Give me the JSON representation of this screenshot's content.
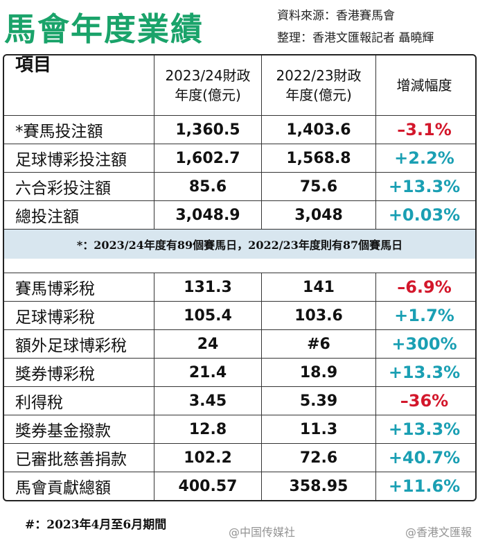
{
  "header": {
    "title": "馬會年度業績",
    "source": "資料來源：香港賽馬會",
    "compiler": "整理：香港文匯報記者 聶曉輝"
  },
  "table": {
    "columns": [
      [
        "項目"
      ],
      [
        "2023/24財政",
        "年度(億元)"
      ],
      [
        "2022/23財政",
        "年度(億元)"
      ],
      [
        "增減幅度"
      ]
    ],
    "positive_color": "#1a9fb3",
    "negative_color": "#d3172b",
    "groups": [
      {
        "rows": [
          {
            "item": "*賽馬投注額",
            "fy2023": "1,360.5",
            "fy2022": "1,403.6",
            "change": "–3.1%",
            "sign": "negative"
          },
          {
            "item": "足球博彩投注額",
            "fy2023": "1,602.7",
            "fy2022": "1,568.8",
            "change": "+2.2%",
            "sign": "positive"
          },
          {
            "item": "六合彩投注額",
            "fy2023": "85.6",
            "fy2022": "75.6",
            "change": "+13.3%",
            "sign": "positive"
          },
          {
            "item": "總投注額",
            "fy2023": "3,048.9",
            "fy2022": "3,048",
            "change": "+0.03%",
            "sign": "positive"
          }
        ],
        "note": "*：2023/24年度有89個賽馬日，2022/23年度則有87個賽馬日"
      },
      {
        "rows": [
          {
            "item": "賽馬博彩稅",
            "fy2023": "131.3",
            "fy2022": "141",
            "change": "–6.9%",
            "sign": "negative"
          },
          {
            "item": "足球博彩稅",
            "fy2023": "105.4",
            "fy2022": "103.6",
            "change": "+1.7%",
            "sign": "positive"
          },
          {
            "item": "額外足球博彩稅",
            "fy2023": "24",
            "fy2022": "#6",
            "change": "+300%",
            "sign": "positive"
          },
          {
            "item": "獎券博彩稅",
            "fy2023": "21.4",
            "fy2022": "18.9",
            "change": "+13.3%",
            "sign": "positive"
          },
          {
            "item": "利得稅",
            "fy2023": "3.45",
            "fy2022": "5.39",
            "change": "–36%",
            "sign": "negative"
          },
          {
            "item": "獎券基金撥款",
            "fy2023": "12.8",
            "fy2022": "11.3",
            "change": "+13.3%",
            "sign": "positive"
          },
          {
            "item": "已審批慈善捐款",
            "fy2023": "102.2",
            "fy2022": "72.6",
            "change": "+40.7%",
            "sign": "positive"
          },
          {
            "item": "馬會貢獻總額",
            "fy2023": "400.57",
            "fy2022": "358.95",
            "change": "+11.6%",
            "sign": "positive"
          }
        ]
      }
    ]
  },
  "footnote": "#：2023年4月至6月期間",
  "watermarks": [
    "@中国传媒社",
    "@香港文匯報"
  ]
}
